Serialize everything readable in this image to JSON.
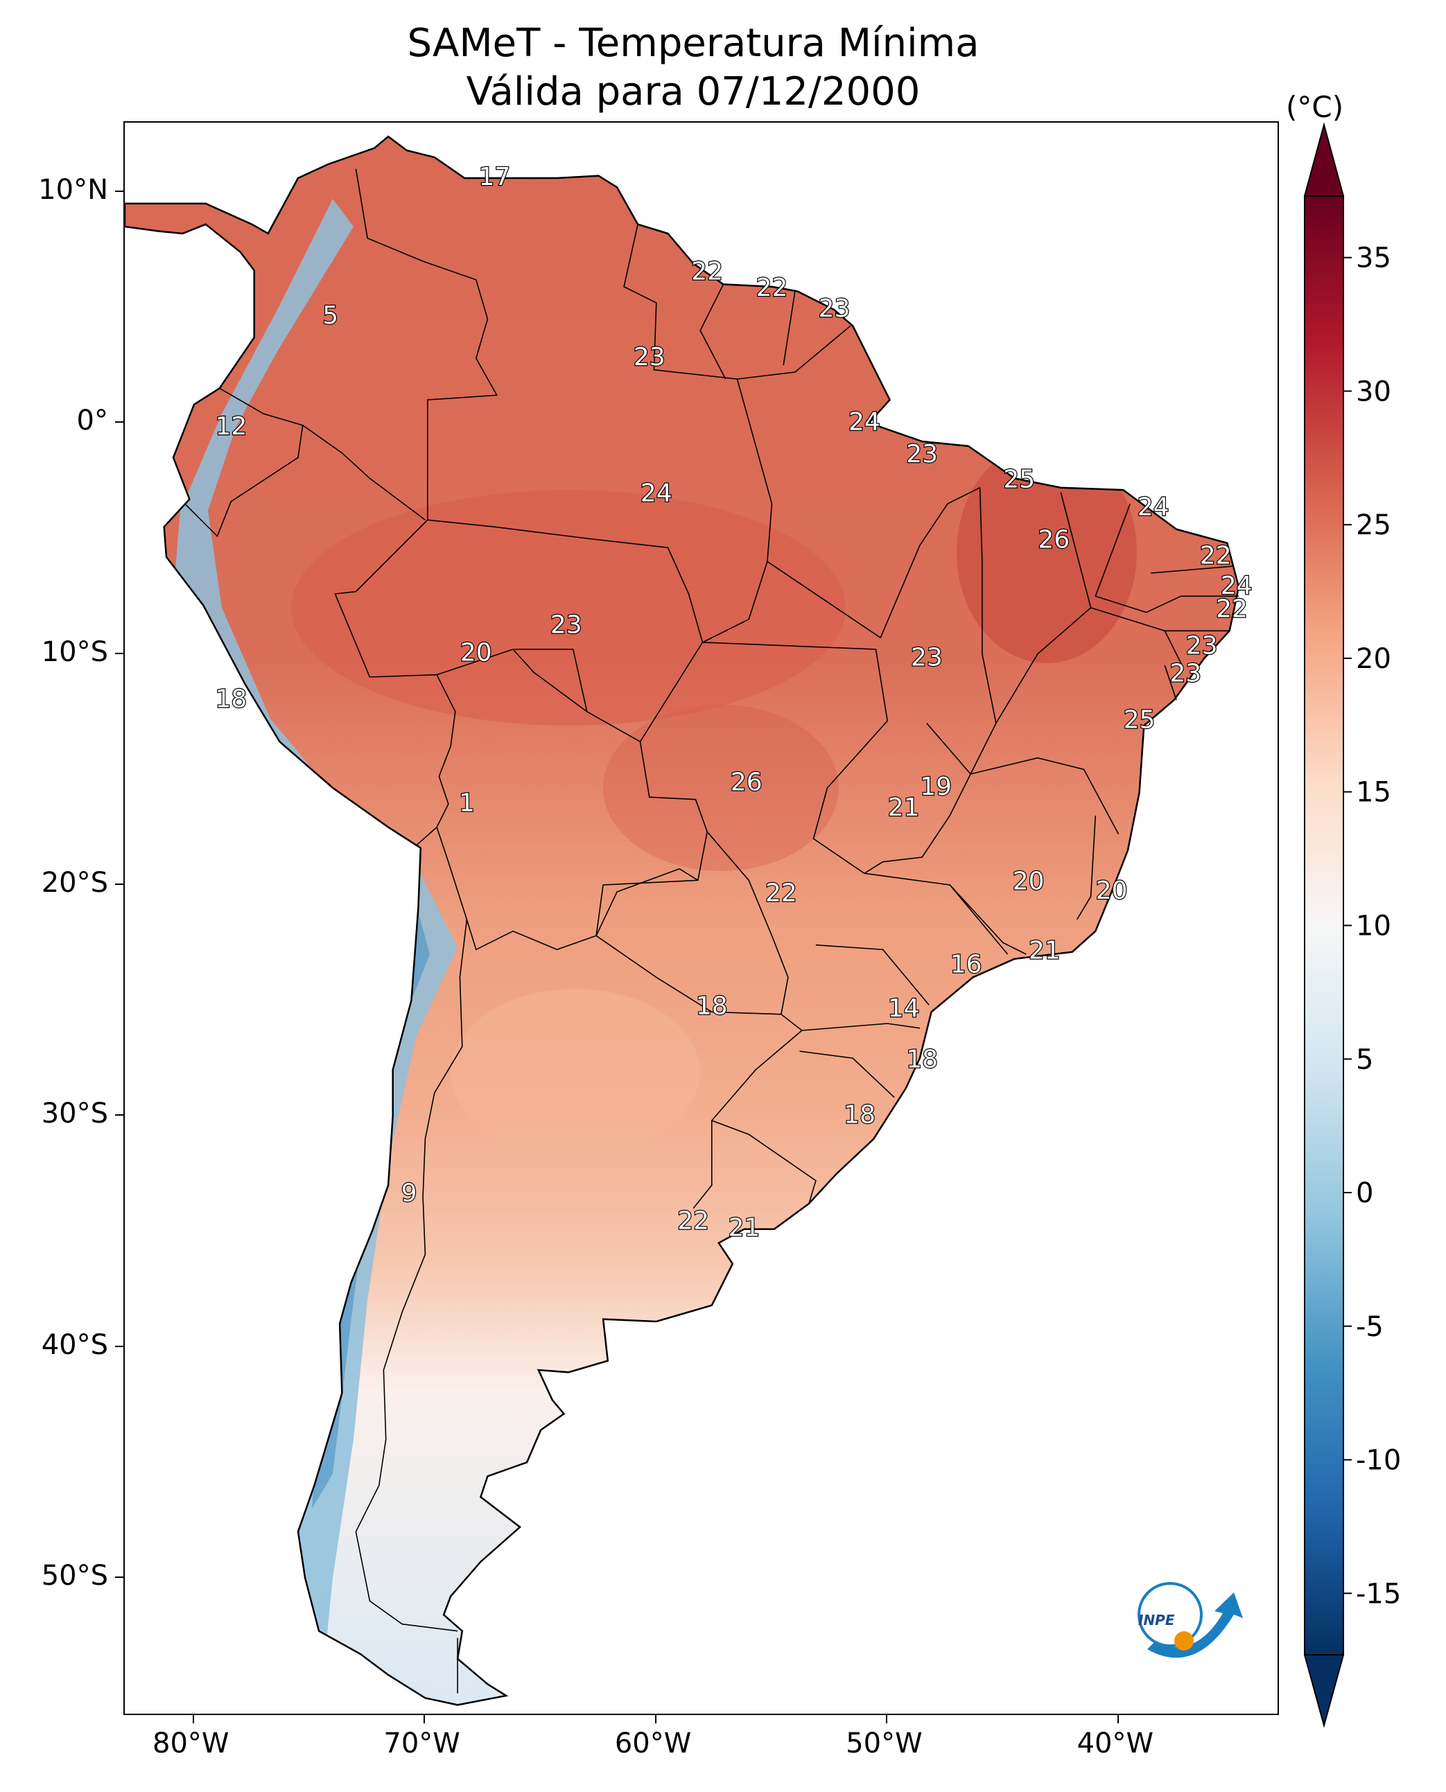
{
  "title_line1": "SAMeT - Temperatura Mínima",
  "title_line2": "Válida para 07/12/2000",
  "colorbar": {
    "unit": "(°C)",
    "min": -15,
    "max": 35,
    "ticks": [
      "35",
      "30",
      "25",
      "20",
      "15",
      "10",
      "5",
      "0",
      "-5",
      "-10",
      "-15"
    ],
    "colors": [
      "#67001f",
      "#b2182b",
      "#d6604d",
      "#f4a582",
      "#fddbc7",
      "#f7f7f7",
      "#d1e5f0",
      "#92c5de",
      "#4393c3",
      "#2166ac",
      "#053061"
    ]
  },
  "axes": {
    "lon_ticks": [
      "80°W",
      "70°W",
      "60°W",
      "50°W",
      "40°W"
    ],
    "lat_ticks": [
      "10°N",
      "0°",
      "10°S",
      "20°S",
      "30°S",
      "40°S",
      "50°S"
    ]
  },
  "station_values": [
    {
      "label": "17",
      "lon": -67.0,
      "lat": 10.6
    },
    {
      "label": "22",
      "lon": -57.8,
      "lat": 6.5
    },
    {
      "label": "22",
      "lon": -55.0,
      "lat": 5.8
    },
    {
      "label": "23",
      "lon": -52.3,
      "lat": 4.9
    },
    {
      "label": "5",
      "lon": -74.1,
      "lat": 4.6
    },
    {
      "label": "23",
      "lon": -60.3,
      "lat": 2.8
    },
    {
      "label": "12",
      "lon": -78.4,
      "lat": -0.2
    },
    {
      "label": "24",
      "lon": -51.0,
      "lat": 0.0
    },
    {
      "label": "23",
      "lon": -48.5,
      "lat": -1.4
    },
    {
      "label": "25",
      "lon": -44.3,
      "lat": -2.5
    },
    {
      "label": "24",
      "lon": -60.0,
      "lat": -3.1
    },
    {
      "label": "24",
      "lon": -38.5,
      "lat": -3.7
    },
    {
      "label": "26",
      "lon": -42.8,
      "lat": -5.1
    },
    {
      "label": "22",
      "lon": -35.8,
      "lat": -5.8
    },
    {
      "label": "24",
      "lon": -34.9,
      "lat": -7.1
    },
    {
      "label": "22",
      "lon": -35.1,
      "lat": -8.1
    },
    {
      "label": "23",
      "lon": -63.9,
      "lat": -8.8
    },
    {
      "label": "23",
      "lon": -36.4,
      "lat": -9.7
    },
    {
      "label": "20",
      "lon": -67.8,
      "lat": -10.0
    },
    {
      "label": "23",
      "lon": -48.3,
      "lat": -10.2
    },
    {
      "label": "23",
      "lon": -37.1,
      "lat": -10.9
    },
    {
      "label": "18",
      "lon": -78.4,
      "lat": -12.0
    },
    {
      "label": "25",
      "lon": -39.1,
      "lat": -12.9
    },
    {
      "label": "26",
      "lon": -56.1,
      "lat": -15.6
    },
    {
      "label": "19",
      "lon": -47.9,
      "lat": -15.8
    },
    {
      "label": "1",
      "lon": -68.2,
      "lat": -16.5
    },
    {
      "label": "21",
      "lon": -49.3,
      "lat": -16.7
    },
    {
      "label": "20",
      "lon": -43.9,
      "lat": -19.9
    },
    {
      "label": "20",
      "lon": -40.3,
      "lat": -20.3
    },
    {
      "label": "22",
      "lon": -54.6,
      "lat": -20.4
    },
    {
      "label": "21",
      "lon": -43.2,
      "lat": -22.9
    },
    {
      "label": "16",
      "lon": -46.6,
      "lat": -23.5
    },
    {
      "label": "18",
      "lon": -57.6,
      "lat": -25.3
    },
    {
      "label": "14",
      "lon": -49.3,
      "lat": -25.4
    },
    {
      "label": "18",
      "lon": -48.5,
      "lat": -27.6
    },
    {
      "label": "18",
      "lon": -51.2,
      "lat": -30.0
    },
    {
      "label": "9",
      "lon": -70.7,
      "lat": -33.4
    },
    {
      "label": "22",
      "lon": -58.4,
      "lat": -34.6
    },
    {
      "label": "21",
      "lon": -56.2,
      "lat": -34.9
    }
  ],
  "logo_text": "INPE"
}
